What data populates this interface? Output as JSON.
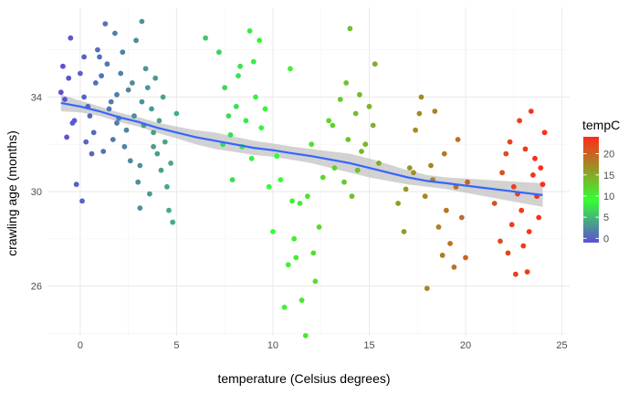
{
  "chart_data": {
    "type": "scatter",
    "xlabel": "temperature (Celsius degrees)",
    "ylabel": "crawling age (months)",
    "xlim": [
      -1.7,
      25.4
    ],
    "ylim": [
      23.9,
      37.8
    ],
    "x_ticks": [
      0,
      5,
      10,
      15,
      20,
      25
    ],
    "x_tick_labels": [
      "0",
      "5",
      "10",
      "15",
      "20",
      "25"
    ],
    "y_ticks": [
      26,
      30,
      34
    ],
    "y_tick_labels": [
      "26",
      "30",
      "34"
    ],
    "grid": true,
    "legend": {
      "title": "tempC",
      "placement": "right",
      "range": [
        -1,
        24
      ],
      "ticks": [
        0,
        5,
        10,
        15,
        20
      ],
      "tick_labels": [
        "0",
        "5",
        "10",
        "15",
        "20"
      ],
      "colors": [
        "#5c4fd6",
        "#33ff33",
        "#ff2a1a"
      ]
    },
    "trend": {
      "type": "loess",
      "color": "#3366ff",
      "band_color": "#bfbfbf",
      "points": [
        [
          -1,
          33.75,
          0.35
        ],
        [
          0,
          33.6,
          0.25
        ],
        [
          1,
          33.4,
          0.2
        ],
        [
          2,
          33.15,
          0.2
        ],
        [
          3,
          32.95,
          0.2
        ],
        [
          4,
          32.7,
          0.22
        ],
        [
          5,
          32.5,
          0.25
        ],
        [
          6,
          32.3,
          0.3
        ],
        [
          7,
          32.15,
          0.35
        ],
        [
          8,
          32.0,
          0.32
        ],
        [
          9,
          31.85,
          0.3
        ],
        [
          10,
          31.75,
          0.28
        ],
        [
          11,
          31.62,
          0.28
        ],
        [
          12,
          31.5,
          0.3
        ],
        [
          13,
          31.35,
          0.35
        ],
        [
          14,
          31.2,
          0.4
        ],
        [
          15,
          31.0,
          0.4
        ],
        [
          16,
          30.8,
          0.35
        ],
        [
          17,
          30.6,
          0.3
        ],
        [
          18,
          30.45,
          0.25
        ],
        [
          19,
          30.35,
          0.25
        ],
        [
          20,
          30.25,
          0.3
        ],
        [
          21,
          30.15,
          0.35
        ],
        [
          22,
          30.05,
          0.4
        ],
        [
          23,
          29.95,
          0.45
        ],
        [
          24,
          29.85,
          0.5
        ]
      ]
    },
    "points": [
      [
        -1,
        34.2
      ],
      [
        -0.5,
        36.5
      ],
      [
        -0.8,
        33.9
      ],
      [
        0.1,
        29.6
      ],
      [
        -0.2,
        30.3
      ],
      [
        0.3,
        32.1
      ],
      [
        0.5,
        33.2
      ],
      [
        -0.9,
        35.3
      ],
      [
        0.2,
        35.7
      ],
      [
        0.8,
        34.6
      ],
      [
        -0.4,
        32.9
      ],
      [
        0.6,
        31.6
      ],
      [
        0.9,
        36.0
      ],
      [
        -0.6,
        34.8
      ],
      [
        0.4,
        33.6
      ],
      [
        0.0,
        35.0
      ],
      [
        -0.3,
        33.0
      ],
      [
        0.7,
        32.5
      ],
      [
        -0.7,
        32.3
      ],
      [
        0.2,
        34.0
      ],
      [
        1.3,
        37.1
      ],
      [
        1.8,
        36.7
      ],
      [
        1.1,
        34.9
      ],
      [
        1.5,
        33.5
      ],
      [
        1.9,
        32.9
      ],
      [
        2.2,
        35.9
      ],
      [
        2.5,
        34.3
      ],
      [
        1.7,
        32.2
      ],
      [
        2.9,
        36.4
      ],
      [
        1.2,
        31.7
      ],
      [
        2.0,
        33.1
      ],
      [
        2.7,
        34.6
      ],
      [
        1.4,
        35.4
      ],
      [
        2.3,
        31.9
      ],
      [
        1.6,
        33.8
      ],
      [
        2.1,
        35.0
      ],
      [
        2.8,
        33.2
      ],
      [
        1.0,
        35.7
      ],
      [
        2.4,
        32.6
      ],
      [
        1.9,
        34.1
      ],
      [
        2.6,
        31.3
      ],
      [
        3.2,
        37.2
      ],
      [
        3.5,
        34.4
      ],
      [
        3.8,
        31.9
      ],
      [
        4.1,
        33.0
      ],
      [
        3.0,
        30.4
      ],
      [
        3.3,
        32.8
      ],
      [
        3.6,
        29.9
      ],
      [
        4.4,
        32.1
      ],
      [
        3.9,
        34.8
      ],
      [
        3.1,
        31.1
      ],
      [
        4.2,
        30.9
      ],
      [
        3.4,
        35.2
      ],
      [
        3.7,
        33.5
      ],
      [
        4.6,
        29.2
      ],
      [
        4.8,
        28.7
      ],
      [
        3.1,
        29.3
      ],
      [
        4.0,
        31.6
      ],
      [
        4.5,
        30.2
      ],
      [
        3.8,
        32.5
      ],
      [
        5.0,
        33.3
      ],
      [
        4.3,
        34.0
      ],
      [
        3.2,
        33.8
      ],
      [
        4.7,
        31.2
      ],
      [
        6.5,
        36.5
      ],
      [
        7.2,
        35.9
      ],
      [
        7.5,
        34.4
      ],
      [
        8.1,
        33.6
      ],
      [
        7.8,
        32.4
      ],
      [
        8.4,
        31.9
      ],
      [
        8.8,
        36.8
      ],
      [
        7.9,
        30.5
      ],
      [
        8.2,
        34.9
      ],
      [
        9.3,
        36.4
      ],
      [
        8.6,
        33.0
      ],
      [
        9.0,
        35.5
      ],
      [
        7.4,
        32.0
      ],
      [
        9.6,
        33.5
      ],
      [
        8.9,
        31.4
      ],
      [
        9.8,
        30.2
      ],
      [
        8.3,
        35.3
      ],
      [
        9.1,
        34.0
      ],
      [
        9.4,
        32.7
      ],
      [
        7.7,
        33.2
      ],
      [
        10.0,
        28.3
      ],
      [
        10.4,
        30.5
      ],
      [
        10.8,
        26.9
      ],
      [
        11.2,
        27.2
      ],
      [
        10.6,
        25.1
      ],
      [
        11.0,
        29.6
      ],
      [
        11.4,
        29.5
      ],
      [
        11.7,
        23.9
      ],
      [
        12.1,
        27.4
      ],
      [
        11.5,
        25.4
      ],
      [
        12.4,
        28.5
      ],
      [
        10.9,
        35.2
      ],
      [
        11.8,
        29.8
      ],
      [
        12.2,
        26.2
      ],
      [
        10.2,
        31.5
      ],
      [
        11.1,
        28.0
      ],
      [
        12.0,
        32.0
      ],
      [
        12.6,
        30.6
      ],
      [
        13.1,
        32.8
      ],
      [
        13.5,
        33.9
      ],
      [
        13.8,
        34.6
      ],
      [
        14.0,
        36.9
      ],
      [
        14.3,
        33.3
      ],
      [
        14.6,
        31.7
      ],
      [
        13.2,
        31.0
      ],
      [
        15.0,
        33.6
      ],
      [
        14.8,
        32.0
      ],
      [
        15.3,
        35.4
      ],
      [
        13.7,
        30.4
      ],
      [
        14.1,
        29.8
      ],
      [
        14.5,
        34.1
      ],
      [
        15.2,
        32.8
      ],
      [
        12.9,
        33.0
      ],
      [
        13.9,
        32.2
      ],
      [
        14.4,
        30.9
      ],
      [
        15.5,
        31.2
      ],
      [
        16.5,
        29.5
      ],
      [
        16.8,
        28.3
      ],
      [
        17.1,
        31.0
      ],
      [
        17.4,
        32.6
      ],
      [
        17.7,
        34.0
      ],
      [
        18.0,
        25.9
      ],
      [
        17.9,
        29.8
      ],
      [
        18.3,
        30.5
      ],
      [
        18.6,
        28.5
      ],
      [
        18.9,
        31.6
      ],
      [
        19.2,
        27.8
      ],
      [
        19.5,
        30.2
      ],
      [
        19.8,
        28.9
      ],
      [
        20.1,
        30.4
      ],
      [
        17.6,
        33.3
      ],
      [
        18.8,
        27.3
      ],
      [
        19.0,
        29.2
      ],
      [
        18.2,
        31.1
      ],
      [
        17.3,
        30.8
      ],
      [
        19.6,
        32.2
      ],
      [
        18.4,
        33.4
      ],
      [
        16.9,
        30.1
      ],
      [
        19.4,
        26.8
      ],
      [
        20.0,
        27.2
      ],
      [
        21.5,
        29.5
      ],
      [
        21.9,
        30.8
      ],
      [
        22.3,
        32.1
      ],
      [
        22.6,
        26.5
      ],
      [
        22.9,
        29.2
      ],
      [
        23.2,
        26.6
      ],
      [
        23.5,
        30.7
      ],
      [
        23.8,
        28.9
      ],
      [
        24.1,
        32.5
      ],
      [
        22.1,
        31.6
      ],
      [
        22.8,
        33.0
      ],
      [
        23.1,
        31.8
      ],
      [
        23.4,
        33.4
      ],
      [
        23.7,
        29.8
      ],
      [
        24.0,
        30.3
      ],
      [
        22.4,
        28.6
      ],
      [
        23.0,
        27.7
      ],
      [
        23.6,
        31.4
      ],
      [
        22.7,
        29.9
      ],
      [
        23.3,
        28.3
      ],
      [
        21.8,
        27.9
      ],
      [
        22.5,
        30.2
      ],
      [
        23.9,
        31.0
      ],
      [
        22.2,
        27.4
      ]
    ]
  }
}
